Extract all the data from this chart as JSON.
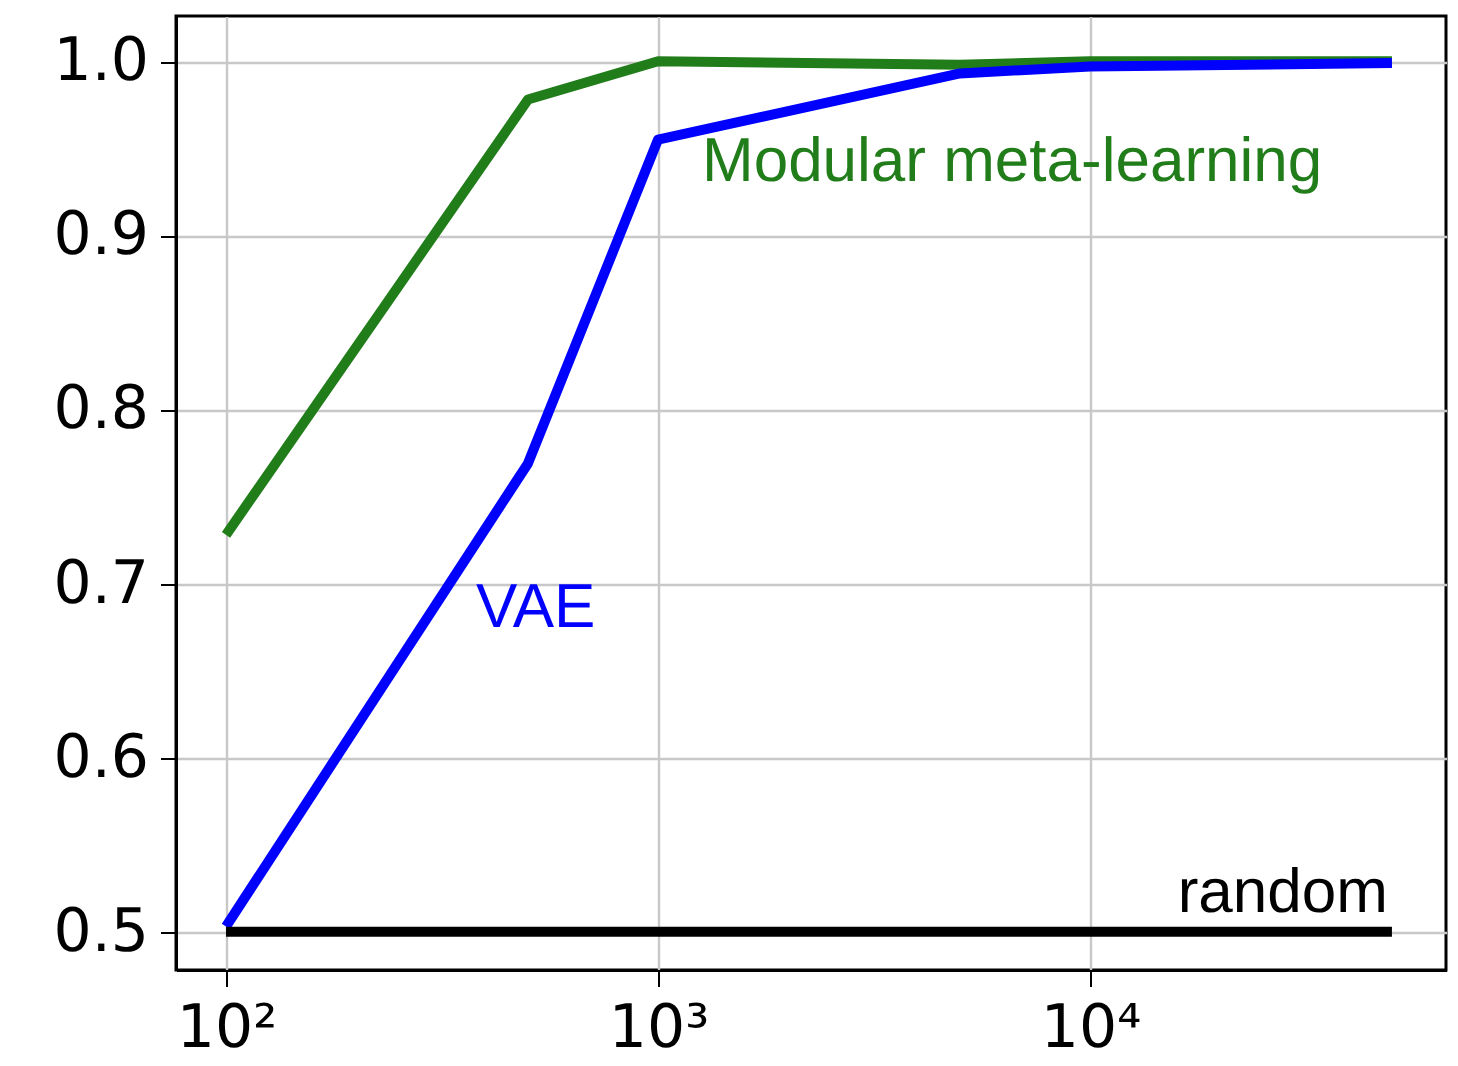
{
  "chart_data": {
    "type": "line",
    "x": [
      100,
      500,
      1000,
      5000,
      10000,
      50000
    ],
    "series": [
      {
        "name": "Modular meta-learning",
        "color": "#217d1a",
        "values": [
          0.728,
          0.978,
          1.0,
          0.998,
          1.0,
          1.0
        ]
      },
      {
        "name": "VAE",
        "color": "#0000ff",
        "values": [
          0.503,
          0.769,
          0.955,
          0.993,
          0.997,
          0.999
        ]
      },
      {
        "name": "random",
        "color": "#000000",
        "values": [
          0.5,
          0.5,
          0.5,
          0.5,
          0.5,
          0.5
        ]
      }
    ],
    "log": "x",
    "xlim": [
      76.6,
      66700
    ],
    "xticks": [
      {
        "value": 100,
        "label": "10²"
      },
      {
        "value": 1000,
        "label": "10³"
      },
      {
        "value": 10000,
        "label": "10⁴"
      }
    ],
    "ylim": [
      0.478,
      1.026
    ],
    "yticks": [
      {
        "value": 0.5,
        "label": "0.5"
      },
      {
        "value": 0.6,
        "label": "0.6"
      },
      {
        "value": 0.7,
        "label": "0.7"
      },
      {
        "value": 0.8,
        "label": "0.8"
      },
      {
        "value": 0.9,
        "label": "0.9"
      },
      {
        "value": 1.0,
        "label": "1.0"
      }
    ],
    "grid": true,
    "marker": "none",
    "line_style": "solid"
  }
}
